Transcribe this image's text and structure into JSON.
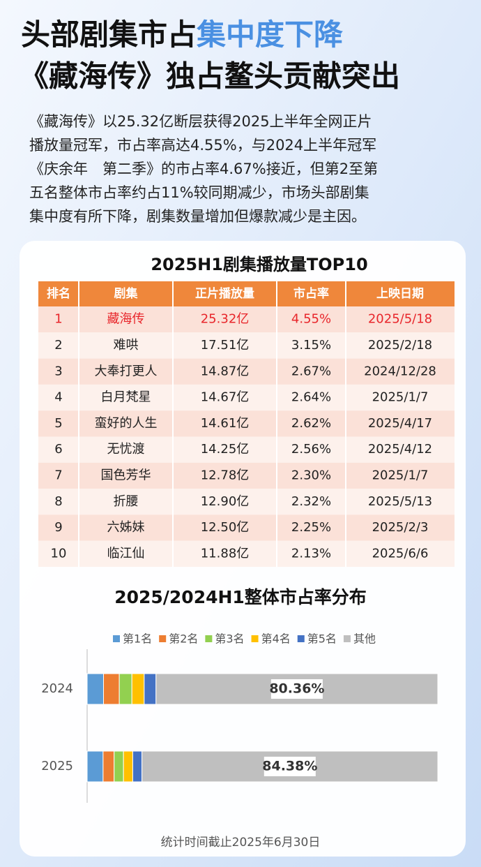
{
  "header": {
    "title_line1": [
      "头部剧集市占",
      "集中度下降"
    ],
    "title_line2": "《藏海传》独占鳌头贡献突出",
    "paragraph": [
      "《藏海传》以25.32亿断层获得2025上半年全网正片",
      "播放量冠军，市占率高达4.55%，与2024上半年冠军",
      "《庆余年　第二季》的市占率4.67%接近，但第2至第",
      "五名整体市占率约占11%较同期减少，市场头部剧集",
      "集中度有所下降，剧集数量增加但爆款减少是主因。"
    ]
  },
  "table": {
    "title": "2025H1剧集播放量TOP10",
    "columns": [
      "排名",
      "剧集",
      "正片播放量",
      "市占率",
      "上映日期"
    ],
    "rows": [
      [
        "1",
        "藏海传",
        "25.32亿",
        "4.55%",
        "2025/5/18"
      ],
      [
        "2",
        "难哄",
        "17.51亿",
        "3.15%",
        "2025/2/18"
      ],
      [
        "3",
        "大奉打更人",
        "14.87亿",
        "2.67%",
        "2024/12/28"
      ],
      [
        "4",
        "白月梵星",
        "14.67亿",
        "2.64%",
        "2025/1/7"
      ],
      [
        "5",
        "蛮好的人生",
        "14.61亿",
        "2.62%",
        "2025/4/17"
      ],
      [
        "6",
        "无忧渡",
        "14.25亿",
        "2.56%",
        "2025/4/12"
      ],
      [
        "7",
        "国色芳华",
        "12.78亿",
        "2.30%",
        "2025/1/7"
      ],
      [
        "8",
        "折腰",
        "12.90亿",
        "2.32%",
        "2025/5/13"
      ],
      [
        "9",
        "六姊妹",
        "12.50亿",
        "2.25%",
        "2025/2/3"
      ],
      [
        "10",
        "临江仙",
        "11.88亿",
        "2.13%",
        "2025/6/6"
      ]
    ]
  },
  "chart_data": {
    "type": "stacked_barh",
    "title": "2025/2024H1整体市占率分布",
    "categories": [
      "2024",
      "2025"
    ],
    "xlim": [
      0,
      100
    ],
    "series": [
      {
        "name": "第1名",
        "color": "#5b9bd5",
        "values": [
          4.67,
          4.55
        ]
      },
      {
        "name": "第2名",
        "color": "#ed7d31",
        "values": [
          4.5,
          3.15
        ]
      },
      {
        "name": "第3名",
        "color": "#92d050",
        "values": [
          3.6,
          2.67
        ]
      },
      {
        "name": "第4名",
        "color": "#ffc000",
        "values": [
          3.5,
          2.64
        ]
      },
      {
        "name": "第5名",
        "color": "#4472c4",
        "values": [
          3.37,
          2.62
        ]
      },
      {
        "name": "其他",
        "color": "#bfbfbf",
        "values": [
          80.36,
          84.38
        ],
        "value_labels": [
          "80.36%",
          "84.38%"
        ]
      }
    ]
  },
  "footer": "统计时间截止2025年6月30日"
}
